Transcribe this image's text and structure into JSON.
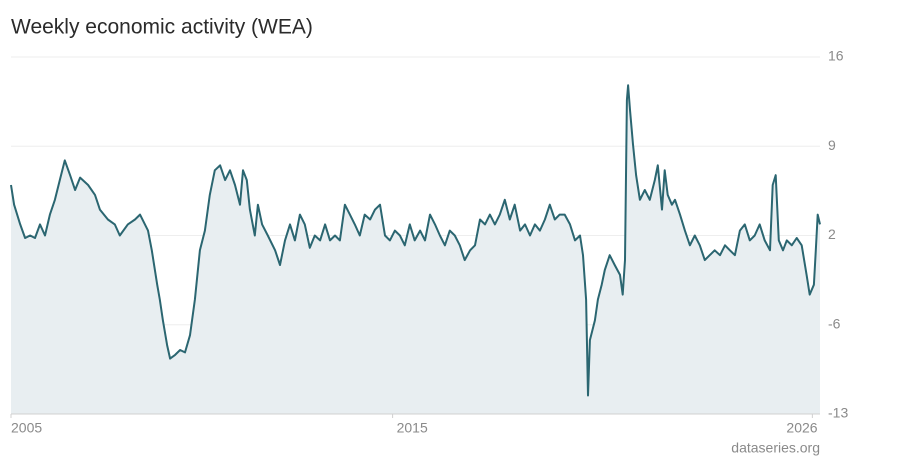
{
  "chart_data": {
    "type": "line",
    "title": "Weekly economic activity (WEA)",
    "source": "dataseries.org",
    "x": [
      2005.0,
      2005.08,
      2005.24,
      2005.37,
      2005.5,
      2005.63,
      2005.76,
      2005.89,
      2006.02,
      2006.15,
      2006.28,
      2006.41,
      2006.55,
      2006.68,
      2006.81,
      2007.02,
      2007.2,
      2007.33,
      2007.54,
      2007.72,
      2007.85,
      2008.06,
      2008.25,
      2008.38,
      2008.59,
      2008.69,
      2008.83,
      2008.9,
      2008.98,
      2009.09,
      2009.17,
      2009.3,
      2009.43,
      2009.56,
      2009.69,
      2009.82,
      2009.95,
      2010.08,
      2010.21,
      2010.34,
      2010.48,
      2010.61,
      2010.74,
      2010.87,
      2011.0,
      2011.08,
      2011.18,
      2011.26,
      2011.39,
      2011.47,
      2011.58,
      2011.73,
      2011.92,
      2012.05,
      2012.18,
      2012.31,
      2012.44,
      2012.57,
      2012.7,
      2012.83,
      2012.96,
      2013.1,
      2013.23,
      2013.36,
      2013.49,
      2013.62,
      2013.75,
      2013.88,
      2014.01,
      2014.14,
      2014.27,
      2014.41,
      2014.54,
      2014.67,
      2014.8,
      2014.93,
      2015.06,
      2015.19,
      2015.32,
      2015.45,
      2015.58,
      2015.72,
      2015.85,
      2015.98,
      2016.11,
      2016.24,
      2016.37,
      2016.5,
      2016.63,
      2016.76,
      2016.89,
      2017.03,
      2017.16,
      2017.29,
      2017.42,
      2017.55,
      2017.68,
      2017.81,
      2017.94,
      2018.07,
      2018.2,
      2018.34,
      2018.47,
      2018.6,
      2018.73,
      2018.86,
      2018.99,
      2019.12,
      2019.25,
      2019.38,
      2019.51,
      2019.65,
      2019.78,
      2019.91,
      2019.99,
      2020.07,
      2020.12,
      2020.17,
      2020.3,
      2020.38,
      2020.48,
      2020.56,
      2020.69,
      2020.82,
      2020.96,
      2021.03,
      2021.09,
      2021.14,
      2021.17,
      2021.22,
      2021.3,
      2021.38,
      2021.48,
      2021.61,
      2021.74,
      2021.87,
      2021.95,
      2022.06,
      2022.13,
      2022.21,
      2022.32,
      2022.4,
      2022.53,
      2022.66,
      2022.79,
      2022.92,
      2023.05,
      2023.18,
      2023.31,
      2023.44,
      2023.58,
      2023.71,
      2023.84,
      2023.97,
      2024.1,
      2024.23,
      2024.36,
      2024.49,
      2024.62,
      2024.75,
      2024.89,
      2024.96,
      2025.04,
      2025.12,
      2025.23,
      2025.33,
      2025.46,
      2025.59,
      2025.72,
      2025.85,
      2025.93,
      2026.04,
      2026.09,
      2026.14,
      2026.2
    ],
    "series": [
      {
        "name": "WEA",
        "color": "#2b6671",
        "fill": "#e8eef1",
        "values": [
          5.6,
          4.0,
          2.4,
          1.3,
          1.5,
          1.3,
          2.4,
          1.5,
          3.2,
          4.4,
          6.0,
          7.6,
          6.4,
          5.2,
          6.2,
          5.6,
          4.8,
          3.6,
          2.8,
          2.4,
          1.5,
          2.4,
          2.8,
          3.2,
          1.9,
          0.3,
          -2.5,
          -3.7,
          -5.4,
          -7.4,
          -8.5,
          -8.2,
          -7.8,
          -8.0,
          -6.6,
          -3.7,
          0.3,
          1.9,
          4.8,
          6.8,
          7.2,
          6.0,
          6.8,
          5.6,
          4.0,
          6.8,
          6.0,
          3.6,
          1.5,
          4.0,
          2.4,
          1.5,
          0.3,
          -0.9,
          1.1,
          2.4,
          1.1,
          3.2,
          2.4,
          0.5,
          1.5,
          1.1,
          2.4,
          1.1,
          1.5,
          1.1,
          4.0,
          3.2,
          2.4,
          1.5,
          3.2,
          2.8,
          3.6,
          4.0,
          1.5,
          1.1,
          1.9,
          1.5,
          0.7,
          2.4,
          1.1,
          1.9,
          1.1,
          3.2,
          2.4,
          1.5,
          0.7,
          1.9,
          1.5,
          0.7,
          -0.5,
          0.3,
          0.7,
          2.8,
          2.4,
          3.2,
          2.4,
          3.2,
          4.4,
          2.8,
          4.0,
          1.9,
          2.4,
          1.5,
          2.4,
          1.9,
          2.8,
          4.0,
          2.8,
          3.2,
          3.2,
          2.4,
          1.1,
          1.5,
          -0.1,
          -3.7,
          -11.5,
          -7.0,
          -5.4,
          -3.7,
          -2.5,
          -1.3,
          -0.1,
          -0.9,
          -1.7,
          -3.3,
          -0.5,
          12.5,
          13.7,
          11.7,
          8.9,
          6.4,
          4.4,
          5.2,
          4.4,
          6.0,
          7.2,
          3.6,
          6.8,
          4.8,
          4.0,
          4.4,
          3.2,
          1.9,
          0.7,
          1.5,
          0.7,
          -0.5,
          -0.1,
          0.3,
          -0.1,
          0.7,
          0.3,
          -0.1,
          1.9,
          2.4,
          1.1,
          1.5,
          2.4,
          1.1,
          0.3,
          5.6,
          6.4,
          1.1,
          0.3,
          1.1,
          0.7,
          1.3,
          0.7,
          -1.7,
          -3.3,
          -2.5,
          0.3,
          3.2,
          2.4
        ]
      }
    ],
    "xlim": [
      2005,
      2026.2
    ],
    "xticks": [
      2005,
      2015,
      2026
    ],
    "ylim": [
      -13,
      16
    ],
    "yticks": [
      -13,
      {
        "value": -5.75,
        "label": "-6"
      },
      {
        "value": 1.5,
        "label": "2"
      },
      {
        "value": 8.75,
        "label": "9"
      },
      16
    ],
    "grid": true
  }
}
